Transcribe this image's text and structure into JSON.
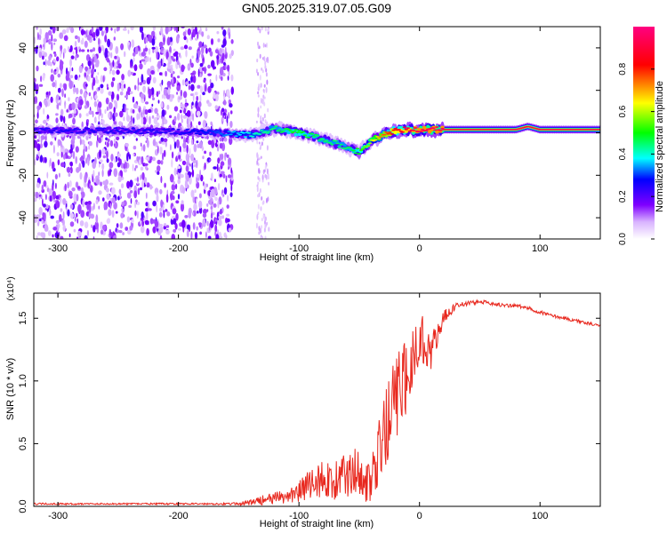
{
  "title": "GN05.2025.319.07.05.G09",
  "chart_data": [
    {
      "type": "heatmap",
      "xlabel": "Height of straight line (km)",
      "ylabel": "Frequency (Hz)",
      "xlim": [
        -320,
        150
      ],
      "ylim": [
        -50,
        50
      ],
      "xticks": [
        -300,
        -200,
        -100,
        0,
        100
      ],
      "yticks": [
        -40,
        -20,
        0,
        20,
        40
      ],
      "grid": false,
      "colorbar": {
        "label": "Normalized spectral amplitude",
        "range": [
          0,
          1
        ],
        "ticks": [
          0.0,
          0.2,
          0.4,
          0.6,
          0.8
        ],
        "colormap": [
          "#ffffff",
          "#7f00ff",
          "#0000ff",
          "#00ffff",
          "#00ff00",
          "#ffff00",
          "#ff0000",
          "#ff0080"
        ]
      },
      "signal_band": {
        "x": [
          -320,
          -300,
          -250,
          -200,
          -170,
          -155,
          -140,
          -120,
          -100,
          -80,
          -60,
          -50,
          -40,
          -30,
          -20,
          -10,
          0,
          20,
          50,
          80,
          90,
          100,
          150
        ],
        "freq": [
          1,
          1,
          1,
          0.5,
          0,
          -0.5,
          -1,
          2,
          0,
          -3,
          -7,
          -9,
          -4,
          -1,
          1,
          1.5,
          1.5,
          1.5,
          1.5,
          1.5,
          3,
          1.5,
          1.5
        ],
        "amplitude": [
          0.25,
          0.25,
          0.25,
          0.25,
          0.3,
          0.35,
          0.4,
          0.45,
          0.5,
          0.45,
          0.45,
          0.5,
          0.6,
          0.75,
          0.85,
          0.9,
          0.95,
          0.95,
          0.95,
          0.95,
          0.9,
          0.95,
          0.95
        ]
      },
      "noise_region_x": [
        -320,
        -155
      ],
      "noise_strip_x": [
        -135,
        -125
      ]
    },
    {
      "type": "line",
      "xlabel": "Height of straight line (km)",
      "ylabel": "SNR (10 * v/v)",
      "scale_label": "(x10⁴)",
      "xlim": [
        -320,
        150
      ],
      "ylim": [
        0,
        1.7
      ],
      "xticks": [
        -300,
        -200,
        -100,
        0,
        100
      ],
      "yticks": [
        0.0,
        0.5,
        1.0,
        1.5
      ],
      "grid": false,
      "series": [
        {
          "color": "#e8281e",
          "x": [
            -320,
            -300,
            -250,
            -200,
            -170,
            -150,
            -140,
            -130,
            -120,
            -110,
            -100,
            -90,
            -80,
            -70,
            -60,
            -50,
            -45,
            -40,
            -35,
            -30,
            -25,
            -20,
            -15,
            -10,
            -5,
            0,
            5,
            10,
            15,
            20,
            30,
            40,
            50,
            60,
            70,
            80,
            90,
            100,
            110,
            120,
            130,
            140,
            150
          ],
          "y": [
            0.02,
            0.02,
            0.02,
            0.02,
            0.02,
            0.02,
            0.03,
            0.05,
            0.06,
            0.08,
            0.12,
            0.18,
            0.22,
            0.2,
            0.25,
            0.3,
            0.22,
            0.18,
            0.35,
            0.55,
            0.7,
            0.85,
            0.95,
            1.05,
            1.2,
            1.35,
            1.3,
            1.25,
            1.35,
            1.5,
            1.6,
            1.62,
            1.63,
            1.62,
            1.6,
            1.6,
            1.58,
            1.55,
            1.52,
            1.5,
            1.48,
            1.46,
            1.44
          ],
          "noise": [
            0.005,
            0.005,
            0.005,
            0.005,
            0.005,
            0.008,
            0.02,
            0.03,
            0.04,
            0.05,
            0.07,
            0.1,
            0.12,
            0.12,
            0.14,
            0.16,
            0.14,
            0.14,
            0.2,
            0.25,
            0.28,
            0.28,
            0.25,
            0.22,
            0.2,
            0.18,
            0.15,
            0.12,
            0.08,
            0.05,
            0.02,
            0.015,
            0.012,
            0.012,
            0.012,
            0.012,
            0.012,
            0.012,
            0.01,
            0.01,
            0.01,
            0.01,
            0.01
          ]
        }
      ]
    }
  ]
}
